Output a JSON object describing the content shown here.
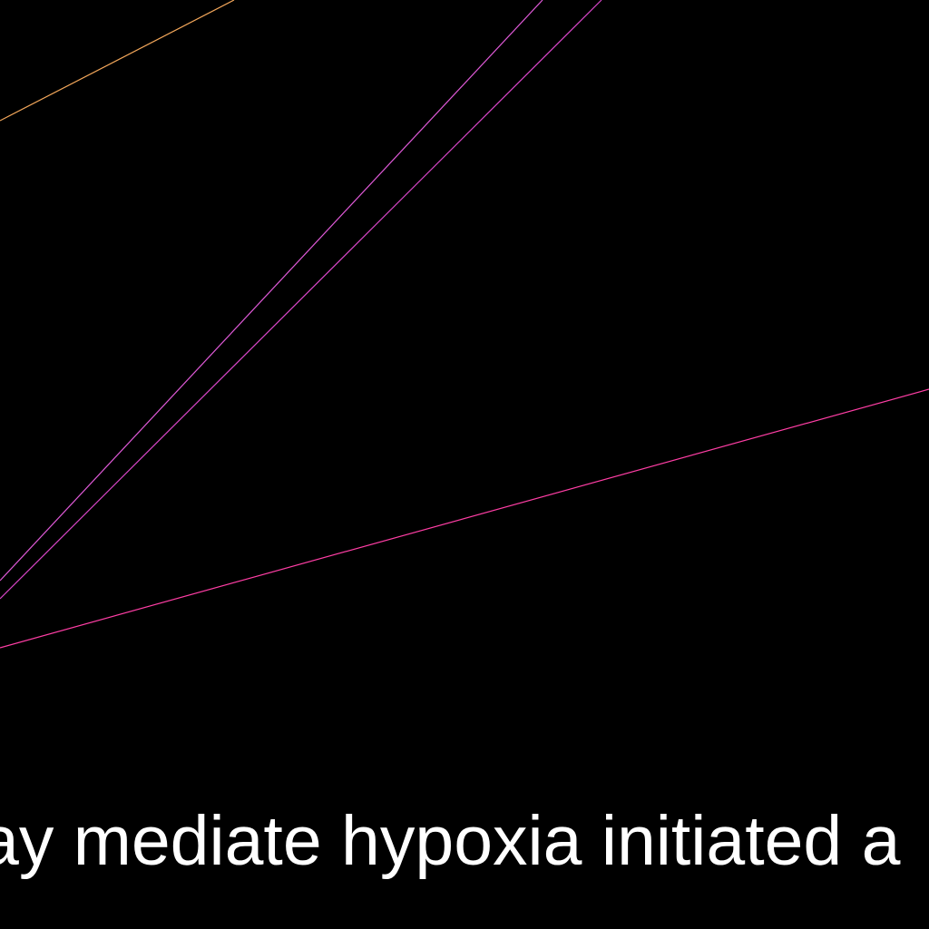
{
  "caption": {
    "text": "ay mediate hypoxia initiated a",
    "color": "#ffffff"
  },
  "background": "#000000",
  "line_colors": {
    "orange": "#f2a65a",
    "magenta_light": "#e05ad8",
    "magenta": "#d946c8",
    "pink": "#ff3ea5"
  }
}
